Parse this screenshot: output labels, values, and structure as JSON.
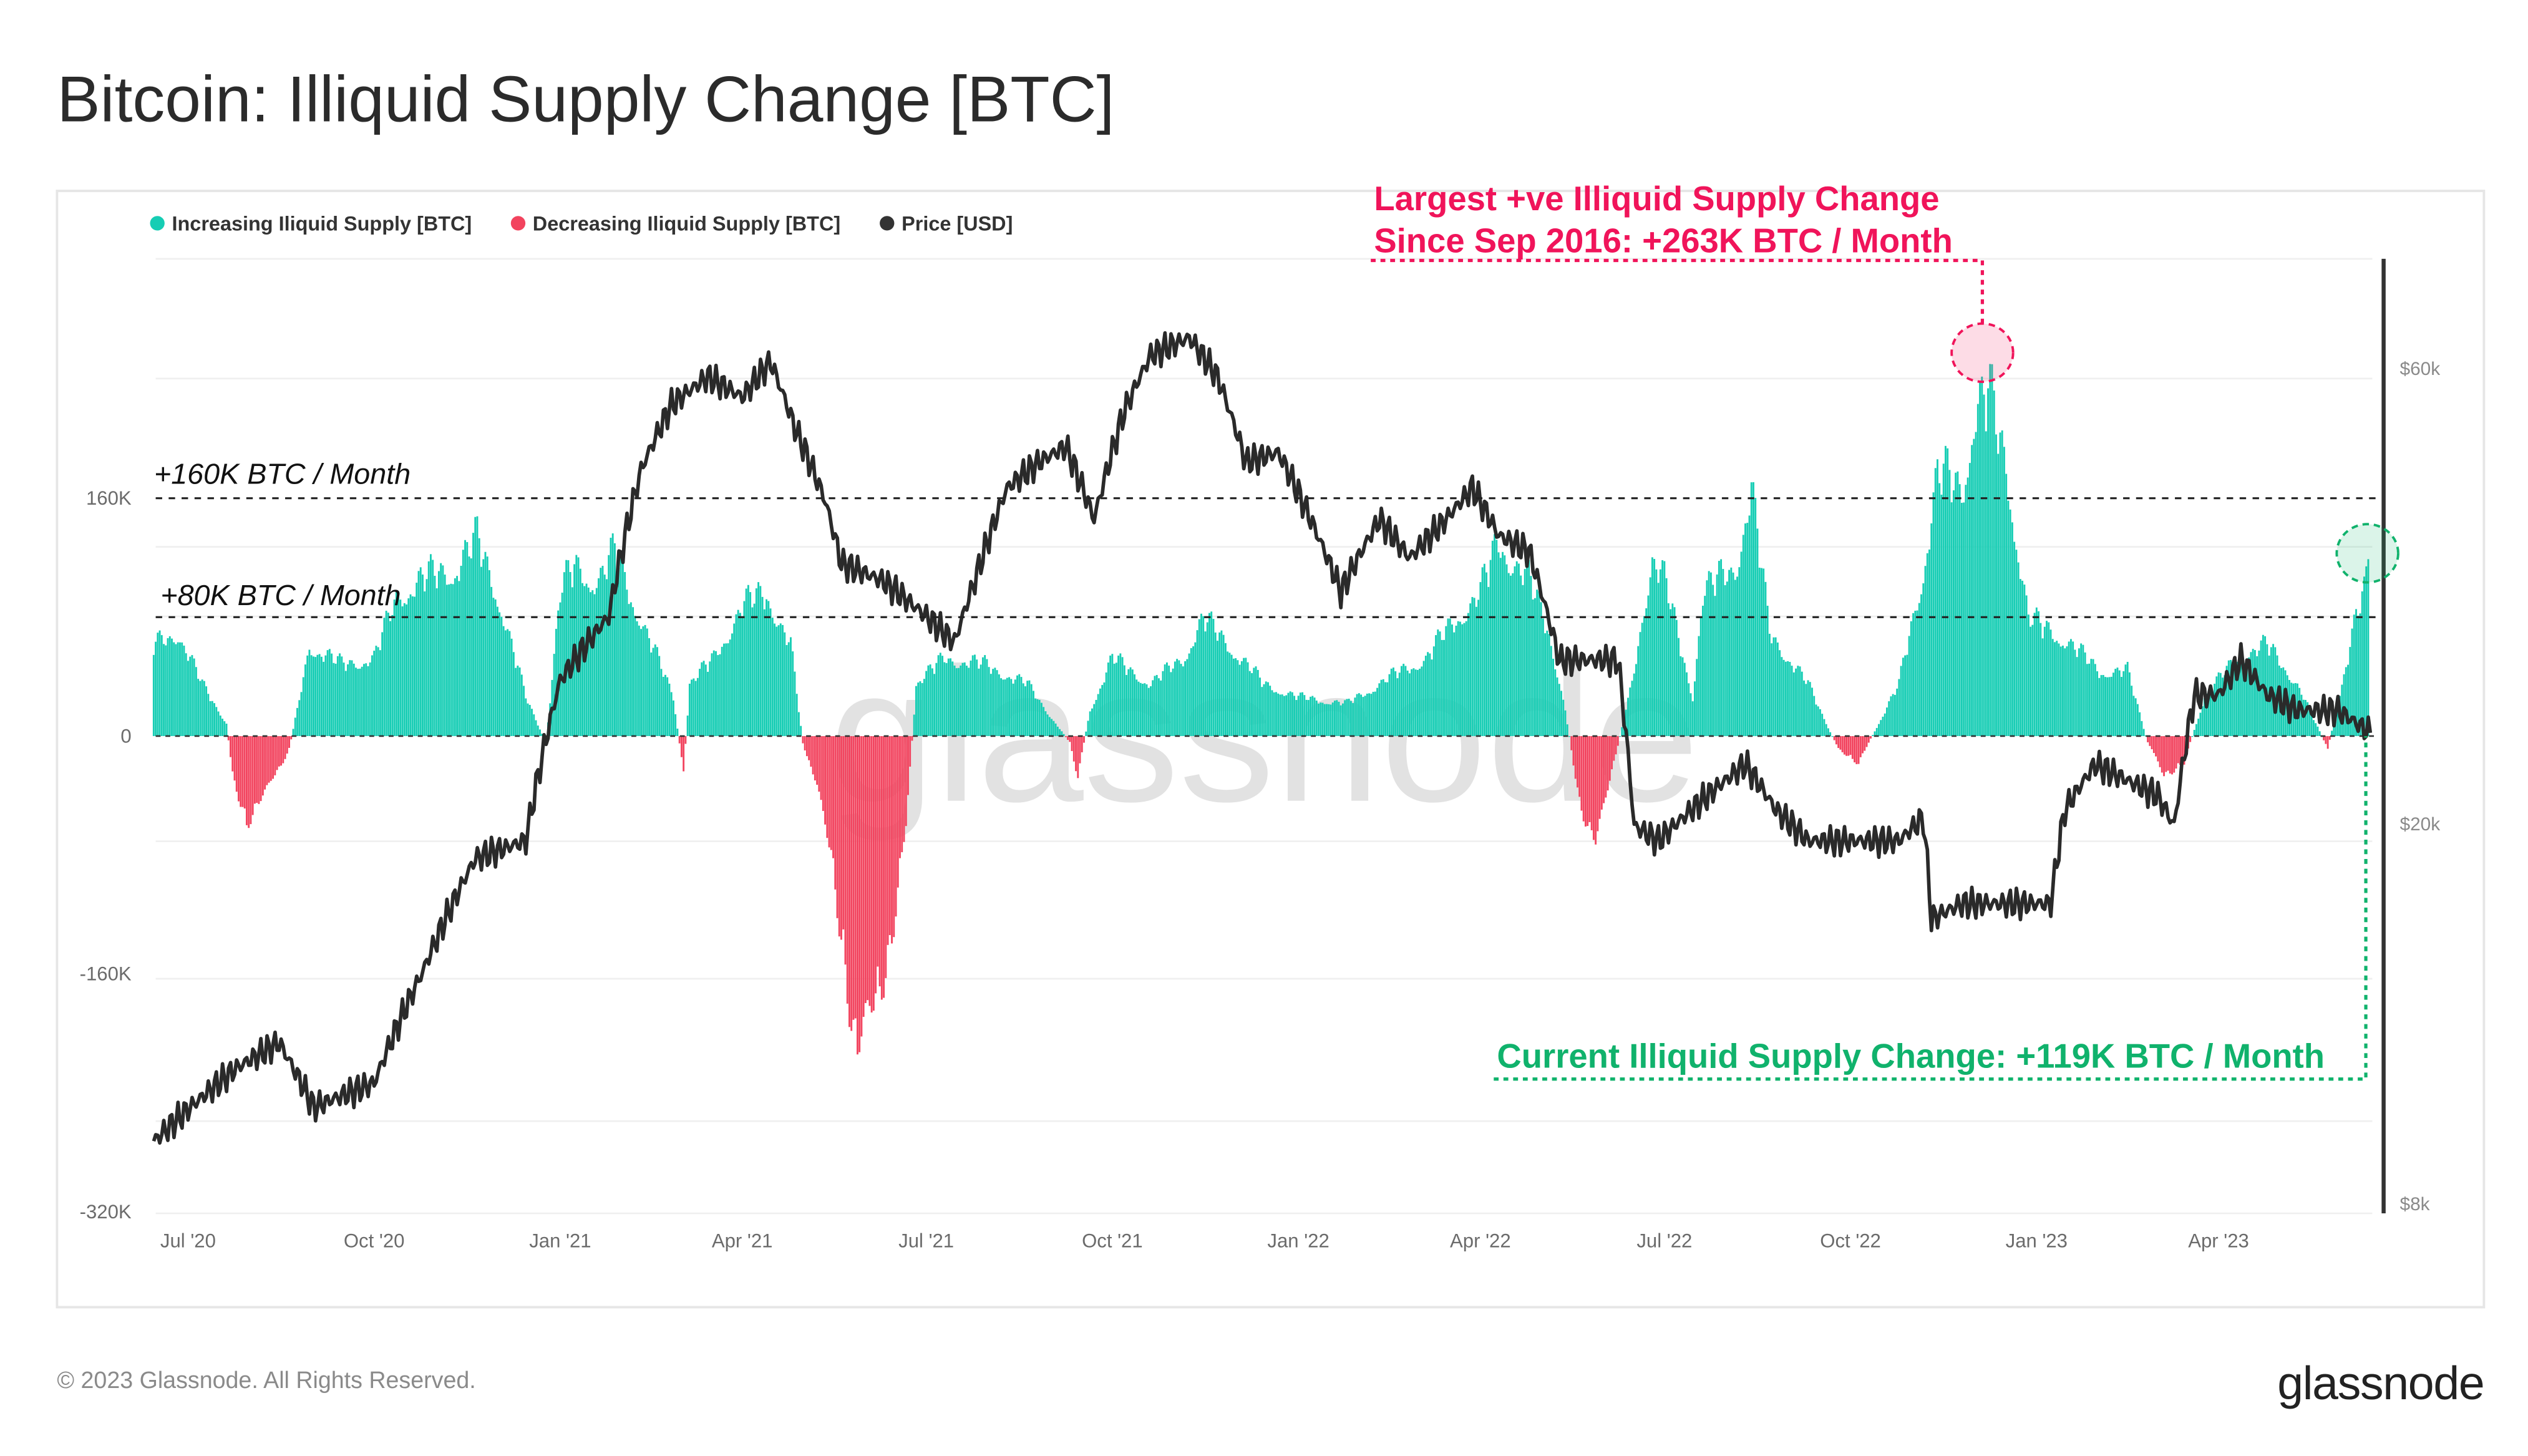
{
  "title": "Bitcoin: Illiquid Supply Change [BTC]",
  "footer": {
    "copyright": "© 2023 Glassnode. All Rights Reserved.",
    "logo_text": "glassnode"
  },
  "watermark": "glassnode",
  "legend": [
    {
      "label": "Increasing Iliquid Supply [BTC]",
      "color": "#16cdb4"
    },
    {
      "label": "Decreasing Iliquid Supply [BTC]",
      "color": "#f2435e"
    },
    {
      "label": "Price [USD]",
      "color": "#333333"
    }
  ],
  "annotations": {
    "largest_line1": "Largest +ve Illiquid Supply Change",
    "largest_line2": "Since Sep 2016: +263K BTC / Month",
    "largest_color": "#f0145a",
    "current": "Current Illiquid Supply Change: +119K BTC / Month",
    "current_color": "#10b26c",
    "ref_160": "+160K BTC / Month",
    "ref_80": "+80K BTC / Month"
  },
  "chart_data": {
    "type": "bar",
    "title": "Bitcoin: Illiquid Supply Change [BTC]",
    "x_ticks": [
      "Jul '20",
      "Oct '20",
      "Jan '21",
      "Apr '21",
      "Jul '21",
      "Oct '21",
      "Jan '22",
      "Apr '22",
      "Jul '22",
      "Oct '22",
      "Jan '23",
      "Apr '23"
    ],
    "x_tick_dates": [
      "2020-07-01",
      "2020-10-01",
      "2021-01-01",
      "2021-04-01",
      "2021-07-01",
      "2021-10-01",
      "2022-01-01",
      "2022-04-01",
      "2022-07-01",
      "2022-10-01",
      "2023-01-01",
      "2023-04-01"
    ],
    "y_left": {
      "ticks": [
        "160K",
        "0",
        "-160K",
        "-320K"
      ],
      "tick_values": [
        160000,
        0,
        -160000,
        -320000
      ],
      "range": [
        -320000,
        315000
      ]
    },
    "y_right": {
      "scale": "log",
      "ticks": [
        "$60k",
        "$20k",
        "$8k"
      ],
      "tick_values": [
        60000,
        20000,
        8000
      ],
      "range": [
        8000,
        100000
      ]
    },
    "x_range": [
      "2020-06-14",
      "2023-06-19"
    ],
    "reference_lines": [
      160000,
      80000
    ],
    "grid": true,
    "legend_position": "top-left",
    "series": [
      {
        "name": "Increasing Iliquid Supply [BTC] / Decreasing Iliquid Supply [BTC]",
        "type": "bar",
        "unit": "BTC per month",
        "points": [
          [
            "2020-06-14",
            70000
          ],
          [
            "2020-06-26",
            80000
          ],
          [
            "2020-07-08",
            40000
          ],
          [
            "2020-07-20",
            10000
          ],
          [
            "2020-07-23",
            -30000
          ],
          [
            "2020-07-30",
            -65000
          ],
          [
            "2020-08-10",
            -40000
          ],
          [
            "2020-08-20",
            -10000
          ],
          [
            "2020-08-24",
            20000
          ],
          [
            "2020-08-30",
            70000
          ],
          [
            "2020-09-15",
            55000
          ],
          [
            "2020-10-01",
            60000
          ],
          [
            "2020-10-13",
            110000
          ],
          [
            "2020-10-25",
            120000
          ],
          [
            "2020-11-10",
            130000
          ],
          [
            "2020-11-21",
            150000
          ],
          [
            "2020-12-01",
            110000
          ],
          [
            "2020-12-15",
            30000
          ],
          [
            "2020-12-25",
            -5000
          ],
          [
            "2021-01-01",
            110000
          ],
          [
            "2021-01-08",
            130000
          ],
          [
            "2021-01-20",
            120000
          ],
          [
            "2021-01-28",
            140000
          ],
          [
            "2021-02-10",
            90000
          ],
          [
            "2021-02-26",
            30000
          ],
          [
            "2021-03-03",
            -30000
          ],
          [
            "2021-03-06",
            40000
          ],
          [
            "2021-03-18",
            60000
          ],
          [
            "2021-04-01",
            100000
          ],
          [
            "2021-04-13",
            110000
          ],
          [
            "2021-04-25",
            70000
          ],
          [
            "2021-05-01",
            -5000
          ],
          [
            "2021-05-08",
            -40000
          ],
          [
            "2021-05-16",
            -100000
          ],
          [
            "2021-05-24",
            -200000
          ],
          [
            "2021-05-28",
            -250000
          ],
          [
            "2021-06-05",
            -210000
          ],
          [
            "2021-06-13",
            -160000
          ],
          [
            "2021-06-21",
            -70000
          ],
          [
            "2021-06-26",
            40000
          ],
          [
            "2021-07-10",
            60000
          ],
          [
            "2021-07-30",
            55000
          ],
          [
            "2021-08-20",
            40000
          ],
          [
            "2021-09-10",
            -5000
          ],
          [
            "2021-09-14",
            -30000
          ],
          [
            "2021-09-20",
            20000
          ],
          [
            "2021-10-01",
            60000
          ],
          [
            "2021-10-20",
            40000
          ],
          [
            "2021-11-05",
            60000
          ],
          [
            "2021-11-15",
            90000
          ],
          [
            "2021-11-28",
            70000
          ],
          [
            "2021-12-15",
            40000
          ],
          [
            "2022-01-01",
            30000
          ],
          [
            "2022-01-25",
            25000
          ],
          [
            "2022-02-15",
            45000
          ],
          [
            "2022-03-05",
            60000
          ],
          [
            "2022-03-20",
            90000
          ],
          [
            "2022-04-01",
            110000
          ],
          [
            "2022-04-10",
            150000
          ],
          [
            "2022-04-25",
            120000
          ],
          [
            "2022-05-05",
            80000
          ],
          [
            "2022-05-13",
            20000
          ],
          [
            "2022-05-20",
            -50000
          ],
          [
            "2022-05-28",
            -85000
          ],
          [
            "2022-06-06",
            -20000
          ],
          [
            "2022-06-15",
            40000
          ],
          [
            "2022-06-25",
            140000
          ],
          [
            "2022-07-01",
            120000
          ],
          [
            "2022-07-15",
            30000
          ],
          [
            "2022-07-20",
            110000
          ],
          [
            "2022-08-05",
            130000
          ],
          [
            "2022-08-13",
            190000
          ],
          [
            "2022-08-22",
            80000
          ],
          [
            "2022-09-10",
            40000
          ],
          [
            "2022-09-25",
            -10000
          ],
          [
            "2022-10-05",
            -20000
          ],
          [
            "2022-10-15",
            10000
          ],
          [
            "2022-10-25",
            40000
          ],
          [
            "2022-11-05",
            120000
          ],
          [
            "2022-11-13",
            200000
          ],
          [
            "2022-11-25",
            190000
          ],
          [
            "2022-12-01",
            250000
          ],
          [
            "2022-12-08",
            263000
          ],
          [
            "2022-12-18",
            200000
          ],
          [
            "2022-12-28",
            90000
          ],
          [
            "2023-01-15",
            75000
          ],
          [
            "2023-02-01",
            50000
          ],
          [
            "2023-02-15",
            50000
          ],
          [
            "2023-02-25",
            -5000
          ],
          [
            "2023-03-05",
            -30000
          ],
          [
            "2023-03-15",
            -20000
          ],
          [
            "2023-03-25",
            30000
          ],
          [
            "2023-04-10",
            60000
          ],
          [
            "2023-04-25",
            70000
          ],
          [
            "2023-05-10",
            40000
          ],
          [
            "2023-05-25",
            -10000
          ],
          [
            "2023-06-01",
            40000
          ],
          [
            "2023-06-08",
            90000
          ],
          [
            "2023-06-14",
            119000
          ]
        ]
      },
      {
        "name": "Price [USD]",
        "type": "line",
        "axis": "right",
        "points": [
          [
            "2020-06-14",
            9300
          ],
          [
            "2020-07-25",
            11100
          ],
          [
            "2020-08-15",
            11800
          ],
          [
            "2020-09-01",
            10100
          ],
          [
            "2020-10-01",
            10700
          ],
          [
            "2020-10-25",
            14000
          ],
          [
            "2020-11-20",
            18400
          ],
          [
            "2020-12-15",
            19200
          ],
          [
            "2021-01-01",
            28300
          ],
          [
            "2021-01-25",
            33000
          ],
          [
            "2021-02-10",
            47000
          ],
          [
            "2021-02-25",
            55000
          ],
          [
            "2021-03-15",
            58800
          ],
          [
            "2021-04-01",
            56000
          ],
          [
            "2021-04-15",
            61000
          ],
          [
            "2021-04-27",
            52000
          ],
          [
            "2021-05-12",
            43600
          ],
          [
            "2021-05-20",
            37500
          ],
          [
            "2021-06-10",
            35900
          ],
          [
            "2021-07-01",
            33000
          ],
          [
            "2021-07-15",
            31000
          ],
          [
            "2021-07-25",
            36000
          ],
          [
            "2021-08-10",
            45000
          ],
          [
            "2021-08-26",
            47900
          ],
          [
            "2021-09-08",
            49700
          ],
          [
            "2021-09-22",
            41700
          ],
          [
            "2021-10-07",
            54200
          ],
          [
            "2021-10-20",
            62000
          ],
          [
            "2021-11-08",
            64600
          ],
          [
            "2021-11-22",
            58800
          ],
          [
            "2021-12-06",
            47900
          ],
          [
            "2021-12-22",
            49000
          ],
          [
            "2022-01-07",
            41700
          ],
          [
            "2022-01-22",
            35000
          ],
          [
            "2022-02-10",
            41700
          ],
          [
            "2022-02-25",
            38000
          ],
          [
            "2022-03-15",
            41700
          ],
          [
            "2022-03-28",
            45000
          ],
          [
            "2022-04-10",
            40100
          ],
          [
            "2022-04-25",
            38600
          ],
          [
            "2022-05-10",
            29700
          ],
          [
            "2022-05-25",
            29700
          ],
          [
            "2022-06-08",
            29700
          ],
          [
            "2022-06-16",
            19900
          ],
          [
            "2022-06-28",
            19200
          ],
          [
            "2022-07-10",
            20300
          ],
          [
            "2022-07-22",
            21400
          ],
          [
            "2022-08-10",
            23100
          ],
          [
            "2022-08-25",
            20700
          ],
          [
            "2022-09-10",
            19200
          ],
          [
            "2022-09-25",
            19200
          ],
          [
            "2022-10-10",
            19200
          ],
          [
            "2022-10-25",
            19200
          ],
          [
            "2022-11-06",
            20300
          ],
          [
            "2022-11-10",
            15900
          ],
          [
            "2022-11-25",
            16500
          ],
          [
            "2022-12-20",
            16500
          ],
          [
            "2023-01-08",
            16500
          ],
          [
            "2023-01-15",
            20700
          ],
          [
            "2023-01-30",
            23100
          ],
          [
            "2023-02-15",
            22200
          ],
          [
            "2023-03-02",
            21400
          ],
          [
            "2023-03-10",
            19900
          ],
          [
            "2023-03-20",
            27300
          ],
          [
            "2023-04-01",
            27300
          ],
          [
            "2023-04-12",
            29700
          ],
          [
            "2023-04-25",
            27300
          ],
          [
            "2023-05-10",
            26300
          ],
          [
            "2023-05-30",
            26300
          ],
          [
            "2023-06-15",
            24900
          ]
        ]
      }
    ]
  }
}
